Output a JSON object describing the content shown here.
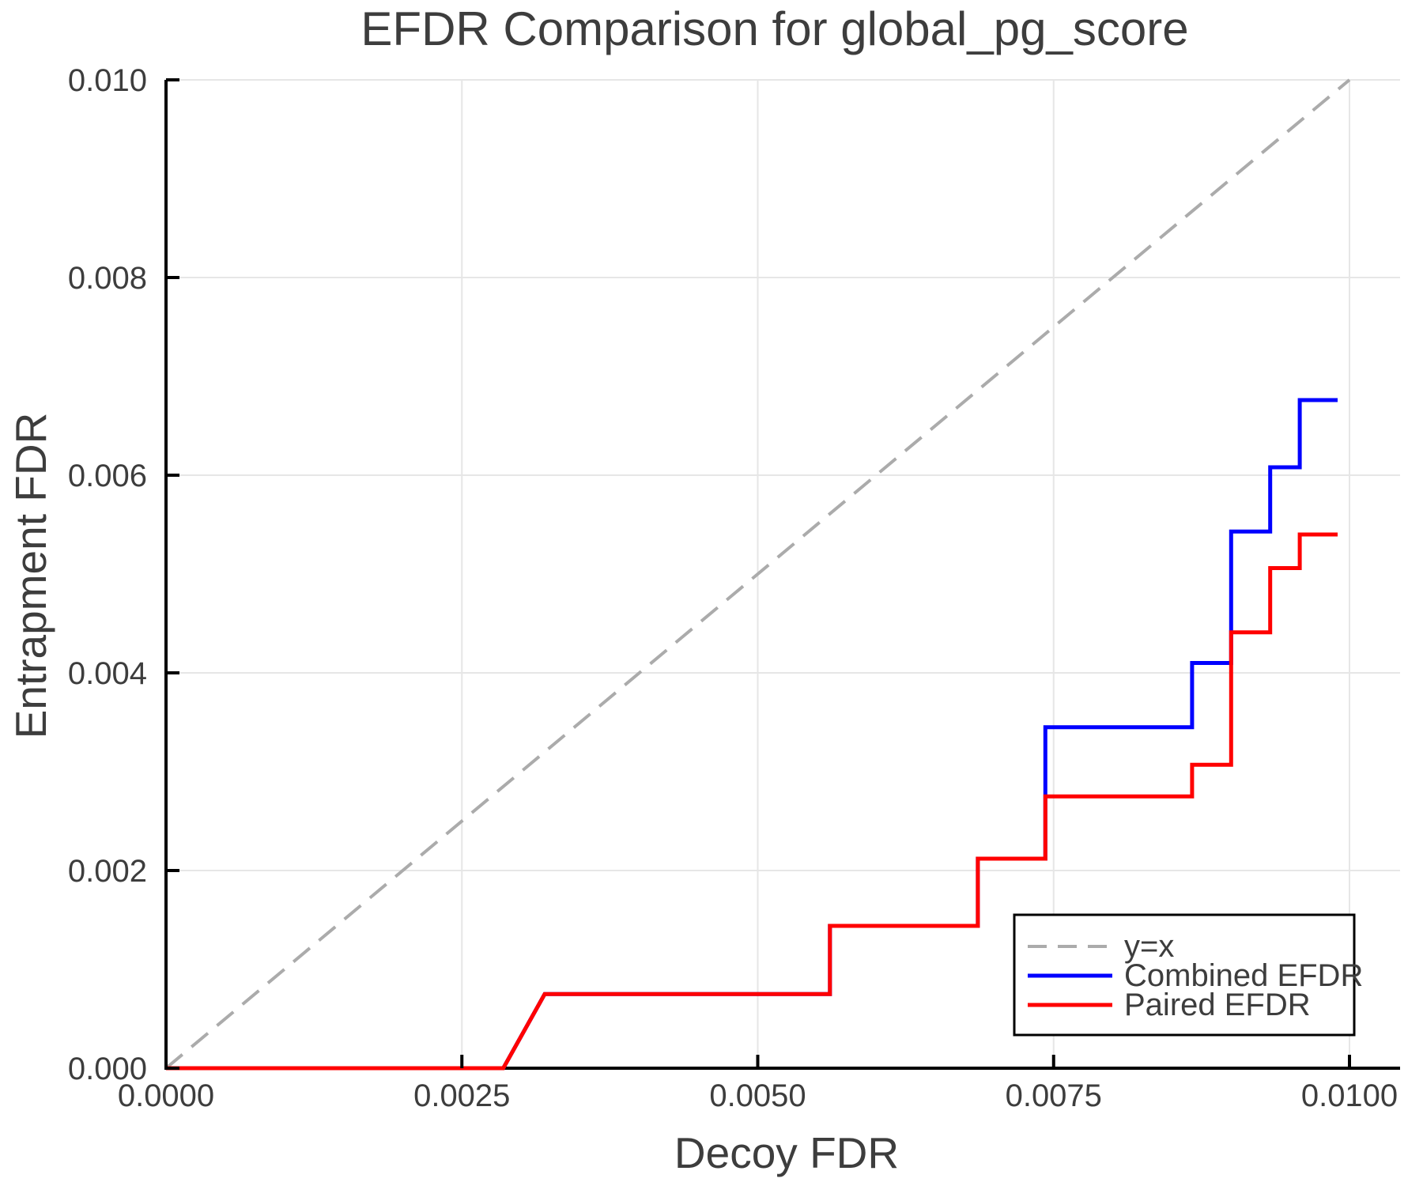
{
  "title": "EFDR Comparison for global_pg_score",
  "colors": {
    "background": "#ffffff",
    "title_text": "#3d3d3d",
    "axis_text": "#3d3d3d",
    "tick_text": "#3d3d3d",
    "grid": "#e6e6e6",
    "spine": "#000000",
    "identity_line": "#ababab",
    "combined_line": "#0000ff",
    "paired_line": "#ff0000",
    "legend_border": "#000000",
    "legend_background": "#ffffff"
  },
  "chart_data": {
    "type": "line",
    "title": "EFDR Comparison for global_pg_score",
    "xlabel": "Decoy FDR",
    "ylabel": "Entrapment FDR",
    "xlim": [
      0.0,
      0.01
    ],
    "ylim": [
      0.0,
      0.01
    ],
    "x_ticks": [
      0.0,
      0.0025,
      0.005,
      0.0075,
      0.01
    ],
    "x_tick_labels": [
      "0.0000",
      "0.0025",
      "0.0050",
      "0.0075",
      "0.0100"
    ],
    "y_ticks": [
      0.0,
      0.002,
      0.004,
      0.006,
      0.008,
      0.01
    ],
    "y_tick_labels": [
      "0.000",
      "0.002",
      "0.004",
      "0.006",
      "0.008",
      "0.010"
    ],
    "grid": true,
    "legend_position": "lower right",
    "series": [
      {
        "name": "y=x",
        "style": "dashed",
        "color": "#ababab",
        "width": 4,
        "points": [
          [
            0.0,
            0.0
          ],
          [
            0.01,
            0.01
          ]
        ]
      },
      {
        "name": "Combined EFDR",
        "style": "solid",
        "color": "#0000ff",
        "width": 5,
        "points": [
          [
            0.0,
            0.0
          ],
          [
            0.00285,
            0.0
          ],
          [
            0.0032,
            0.00075
          ],
          [
            0.00561,
            0.00075
          ],
          [
            0.00561,
            0.00144
          ],
          [
            0.00686,
            0.00144
          ],
          [
            0.00686,
            0.00212
          ],
          [
            0.00743,
            0.00212
          ],
          [
            0.00743,
            0.00345
          ],
          [
            0.00867,
            0.00345
          ],
          [
            0.00867,
            0.0041
          ],
          [
            0.009,
            0.0041
          ],
          [
            0.009,
            0.00543
          ],
          [
            0.00933,
            0.00543
          ],
          [
            0.00933,
            0.00608
          ],
          [
            0.00958,
            0.00608
          ],
          [
            0.00958,
            0.00676
          ],
          [
            0.0099,
            0.00676
          ]
        ]
      },
      {
        "name": "Paired EFDR",
        "style": "solid",
        "color": "#ff0000",
        "width": 5,
        "points": [
          [
            0.0,
            0.0
          ],
          [
            0.00285,
            0.0
          ],
          [
            0.0032,
            0.00075
          ],
          [
            0.00561,
            0.00075
          ],
          [
            0.00561,
            0.00144
          ],
          [
            0.00686,
            0.00144
          ],
          [
            0.00686,
            0.00212
          ],
          [
            0.00743,
            0.00212
          ],
          [
            0.00743,
            0.00275
          ],
          [
            0.00867,
            0.00275
          ],
          [
            0.00867,
            0.00307
          ],
          [
            0.009,
            0.00307
          ],
          [
            0.009,
            0.00441
          ],
          [
            0.00933,
            0.00441
          ],
          [
            0.00933,
            0.00506
          ],
          [
            0.00958,
            0.00506
          ],
          [
            0.00958,
            0.0054
          ],
          [
            0.0099,
            0.0054
          ]
        ]
      }
    ]
  }
}
